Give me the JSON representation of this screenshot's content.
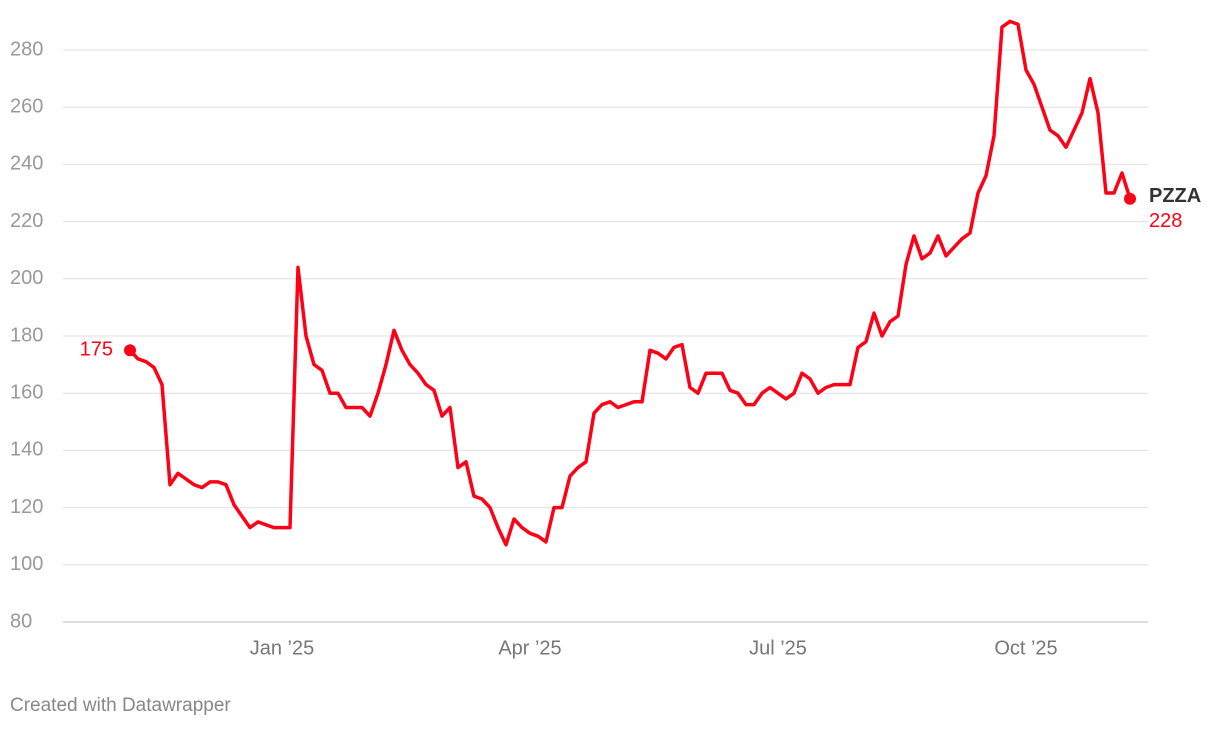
{
  "chart_data": {
    "type": "line",
    "categories": [
      null,
      null,
      null,
      null,
      null,
      null,
      null,
      null,
      null,
      null,
      null,
      null,
      null,
      null,
      null,
      null,
      null,
      null,
      null,
      "Jan ’25",
      null,
      null,
      null,
      null,
      null,
      null,
      null,
      null,
      null,
      null,
      null,
      null,
      null,
      null,
      null,
      null,
      null,
      null,
      null,
      null,
      null,
      null,
      null,
      null,
      null,
      null,
      null,
      null,
      null,
      null,
      "Apr ’25",
      null,
      null,
      null,
      null,
      null,
      null,
      null,
      null,
      null,
      null,
      null,
      null,
      null,
      null,
      null,
      null,
      null,
      null,
      null,
      null,
      null,
      null,
      null,
      null,
      null,
      null,
      null,
      null,
      null,
      null,
      "Jul ’25",
      null,
      null,
      null,
      null,
      null,
      null,
      null,
      null,
      null,
      null,
      null,
      null,
      null,
      null,
      null,
      null,
      null,
      null,
      null,
      null,
      null,
      null,
      null,
      null,
      null,
      null,
      null,
      null,
      null,
      null,
      "Oct ’25",
      null,
      null,
      null,
      null,
      null,
      null,
      null,
      null,
      null,
      null,
      null,
      null,
      null
    ],
    "series": [
      {
        "name": "PZZA",
        "color": "#ff0017",
        "values": [
          175,
          172,
          171,
          169,
          163,
          128,
          132,
          130,
          128,
          127,
          129,
          129,
          128,
          121,
          117,
          113,
          115,
          114,
          113,
          113,
          113,
          204,
          180,
          170,
          168,
          160,
          160,
          155,
          155,
          155,
          152,
          160,
          170,
          182,
          175,
          170,
          167,
          163,
          161,
          152,
          155,
          134,
          136,
          124,
          123,
          120,
          113,
          107,
          116,
          113,
          111,
          110,
          108,
          120,
          120,
          131,
          134,
          136,
          153,
          156,
          157,
          155,
          156,
          157,
          157,
          175,
          174,
          172,
          176,
          177,
          162,
          160,
          167,
          167,
          167,
          161,
          160,
          156,
          156,
          160,
          162,
          160,
          158,
          160,
          167,
          165,
          160,
          162,
          163,
          163,
          163,
          176,
          178,
          188,
          180,
          185,
          187,
          205,
          215,
          207,
          209,
          215,
          208,
          211,
          214,
          216,
          230,
          236,
          250,
          288,
          290,
          289,
          273,
          268,
          260,
          252,
          250,
          246,
          252,
          258,
          270,
          258,
          230,
          230,
          237,
          228
        ]
      }
    ],
    "ylim": [
      80,
      280
    ],
    "yticks": [
      80,
      100,
      120,
      140,
      160,
      180,
      200,
      220,
      240,
      260,
      280
    ],
    "grid": true,
    "footer": "Created with Datawrapper"
  }
}
